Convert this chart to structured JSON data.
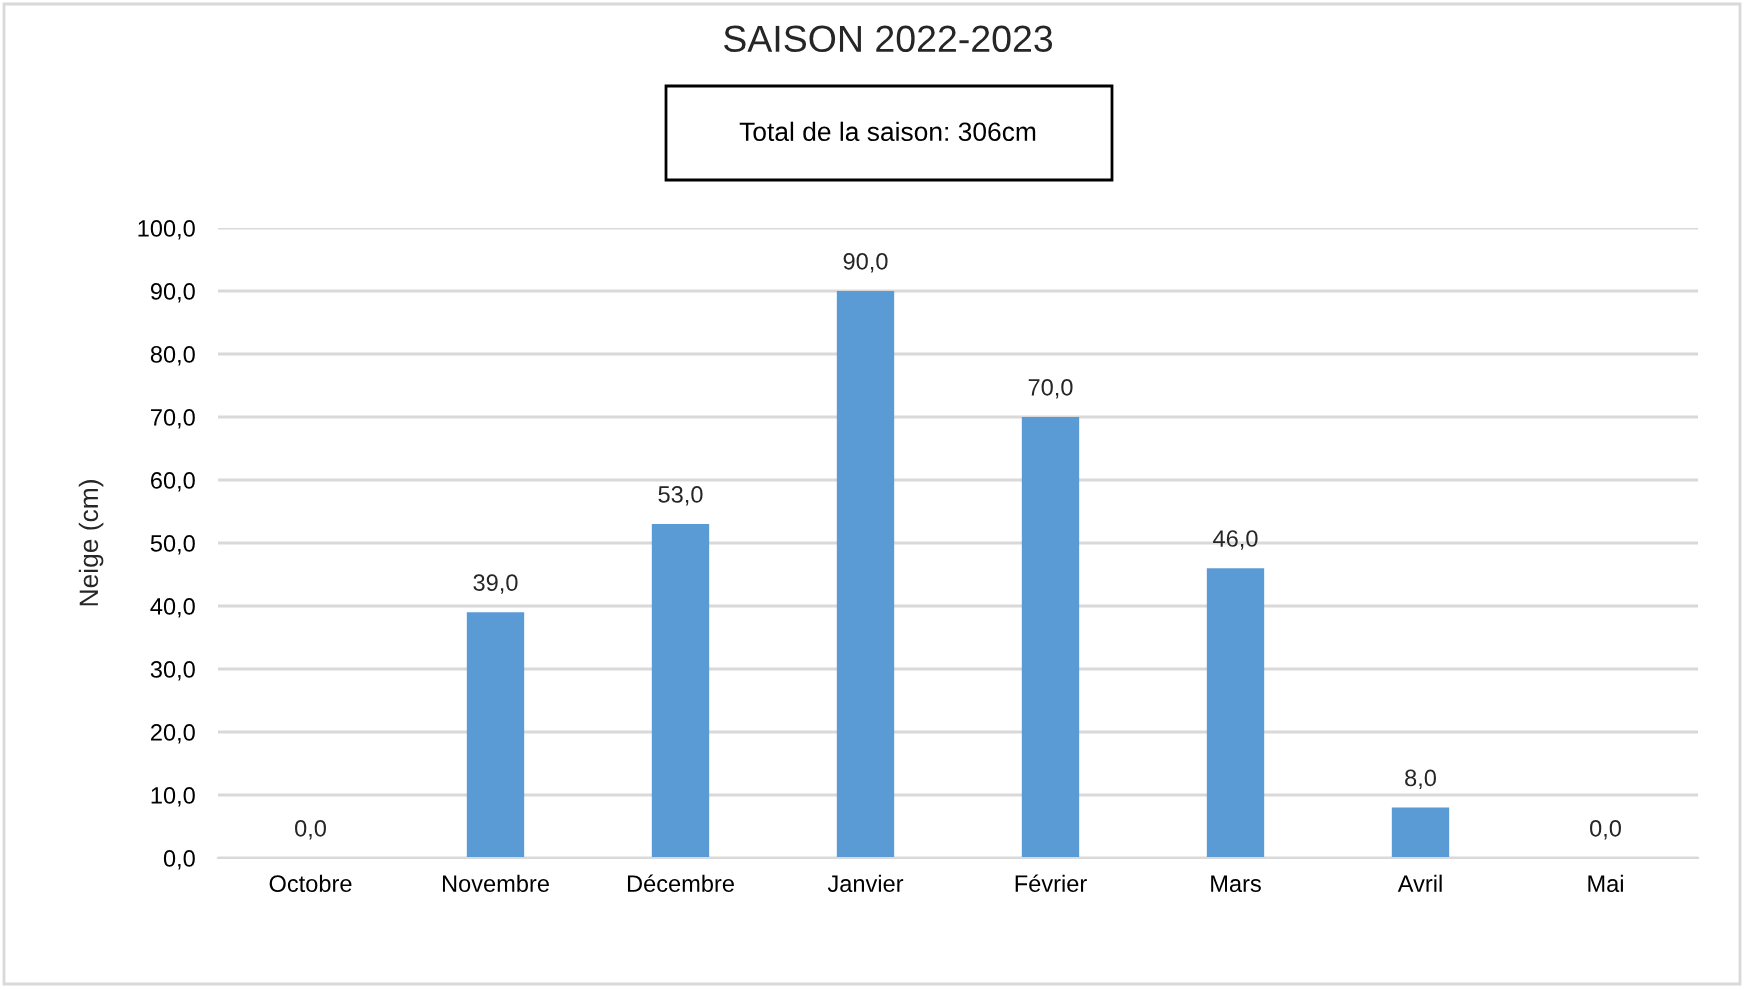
{
  "chart_data": {
    "type": "bar",
    "title": "SAISON 2022-2023",
    "ylabel": "Neige (cm)",
    "annotations": [
      "Total de la saison: 306cm"
    ],
    "categories": [
      "Octobre",
      "Novembre",
      "Décembre",
      "Janvier",
      "Février",
      "Mars",
      "Avril",
      "Mai"
    ],
    "values": [
      0,
      39,
      53,
      90,
      70,
      46,
      8,
      0
    ],
    "value_labels": [
      "0,0",
      "39,0",
      "53,0",
      "90,0",
      "70,0",
      "46,0",
      "8,0",
      "0,0"
    ],
    "color": "#5b9bd5",
    "ylim": [
      0,
      100
    ],
    "yticks": [
      {
        "value": 0,
        "label": "0,0"
      },
      {
        "value": 10,
        "label": "10,0"
      },
      {
        "value": 20,
        "label": "20,0"
      },
      {
        "value": 30,
        "label": "30,0"
      },
      {
        "value": 40,
        "label": "40,0"
      },
      {
        "value": 50,
        "label": "50,0"
      },
      {
        "value": 60,
        "label": "60,0"
      },
      {
        "value": 70,
        "label": "70,0"
      },
      {
        "value": 80,
        "label": "80,0"
      },
      {
        "value": 90,
        "label": "90,0"
      },
      {
        "value": 100,
        "label": "100,0"
      }
    ],
    "grid": "y",
    "legend": false
  }
}
